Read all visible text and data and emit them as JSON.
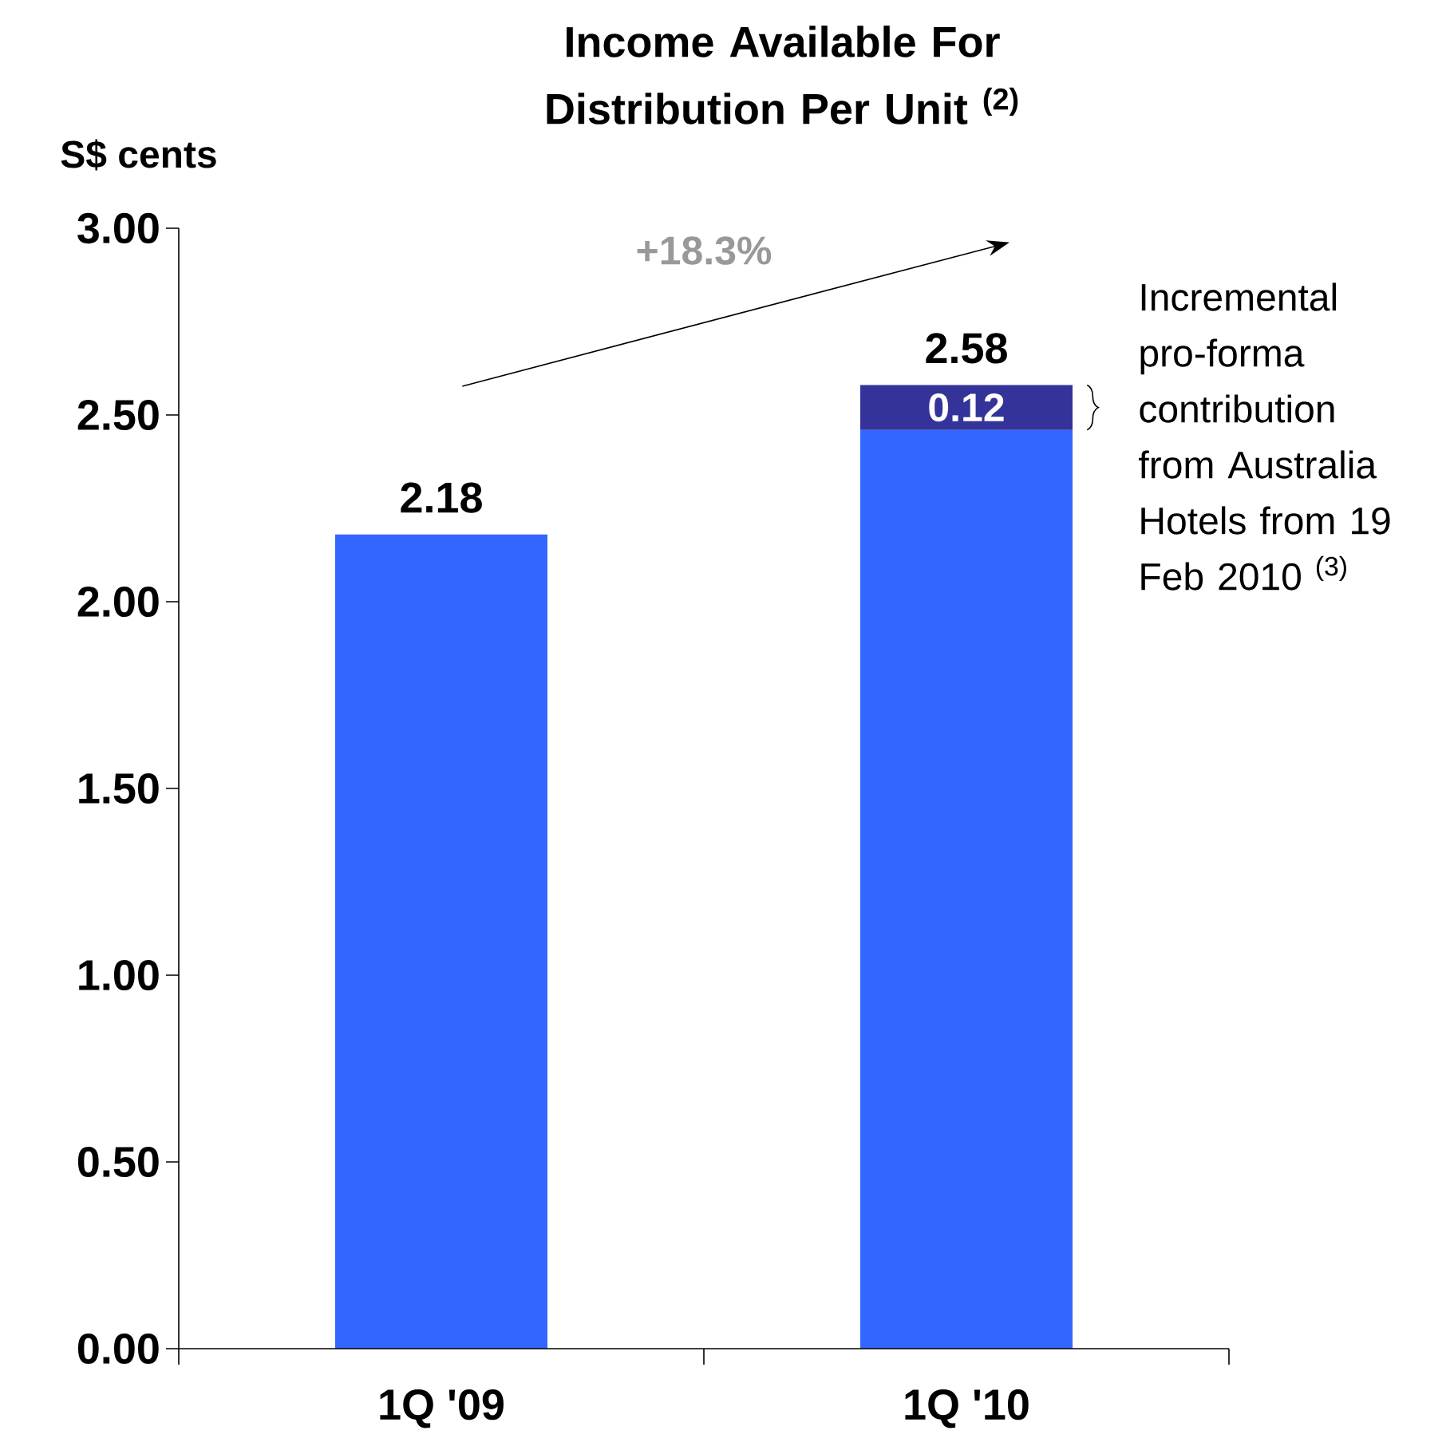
{
  "chart_data": {
    "type": "bar",
    "title": "Income Available For Distribution Per Unit $^{(2)}$",
    "ylabel": "S$ cents",
    "categories": [
      "1Q '09",
      "1Q '10"
    ],
    "stacked": true,
    "series": [
      {
        "color": "#3366ff",
        "values": [
          2.18,
          2.46
        ]
      },
      {
        "color": "#333399",
        "values": [
          null,
          0.12
        ],
        "value_labels": [
          null,
          "0.12"
        ]
      }
    ],
    "totals": [
      "2.18",
      "2.58"
    ],
    "ylim": [
      0,
      3
    ],
    "yticks": [
      {
        "value": 0,
        "label": "0.00"
      },
      {
        "value": 0.5,
        "label": "0.50"
      },
      {
        "value": 1,
        "label": "1.00"
      },
      {
        "value": 1.5,
        "label": "1.50"
      },
      {
        "value": 2,
        "label": "2.00"
      },
      {
        "value": 2.5,
        "label": "2.50"
      },
      {
        "value": 3,
        "label": "3.00"
      }
    ],
    "annotations": [
      "+18.3%",
      "Incremental pro-forma contribution from Australia Hotels from 19 Feb 2010 $^{(3)}$"
    ]
  }
}
